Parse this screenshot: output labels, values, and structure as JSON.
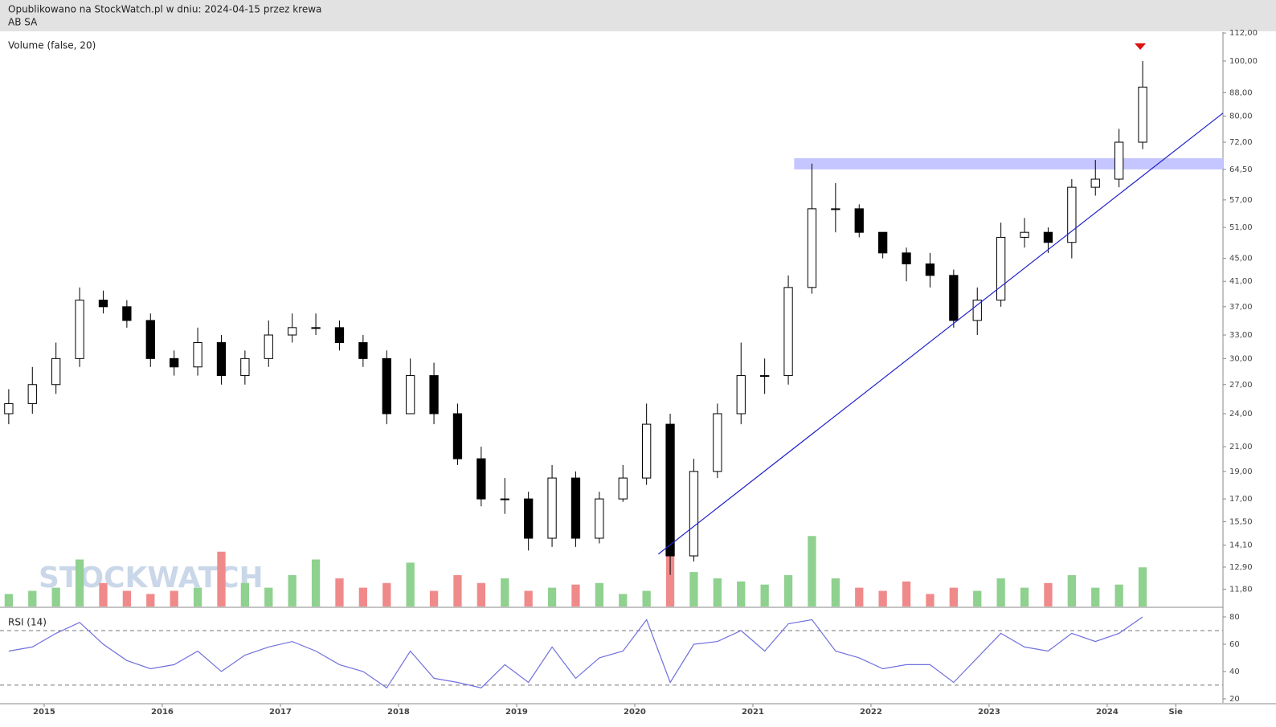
{
  "header": {
    "published": "Opublikowano na StockWatch.pl w dniu: 2024-04-15 przez krewa",
    "watermark": "STOCKWATCH"
  },
  "chart_data": [
    {
      "type": "candlestick",
      "title": "AB SA",
      "volume_label": "Volume (false, 20)",
      "log_scale": true,
      "x": [
        2014.7,
        2014.9,
        2015.1,
        2015.3,
        2015.5,
        2015.7,
        2015.9,
        2016.1,
        2016.3,
        2016.5,
        2016.7,
        2016.9,
        2017.1,
        2017.3,
        2017.5,
        2017.7,
        2017.9,
        2018.1,
        2018.3,
        2018.5,
        2018.7,
        2018.9,
        2019.1,
        2019.3,
        2019.5,
        2019.7,
        2019.9,
        2020.1,
        2020.3,
        2020.5,
        2020.7,
        2020.9,
        2021.1,
        2021.3,
        2021.5,
        2021.7,
        2021.9,
        2022.1,
        2022.3,
        2022.5,
        2022.7,
        2022.9,
        2023.1,
        2023.3,
        2023.5,
        2023.7,
        2023.9,
        2024.1,
        2024.3
      ],
      "open": [
        24,
        25,
        27,
        30,
        38,
        37,
        35,
        30,
        29,
        32,
        28,
        30,
        33,
        34,
        34,
        32,
        30,
        24,
        28,
        24,
        20,
        17,
        17,
        14.5,
        18.5,
        14.5,
        17,
        18.5,
        23,
        13.5,
        19,
        24,
        28,
        28,
        40,
        55,
        55,
        50,
        46,
        44,
        42,
        35,
        38,
        49,
        50,
        48,
        60,
        62,
        72
      ],
      "high": [
        26.5,
        29,
        32,
        40,
        39.5,
        38,
        36,
        31,
        34,
        33,
        31,
        35,
        36,
        36,
        35,
        33,
        31,
        30,
        29.5,
        25,
        21,
        18.5,
        17.5,
        19.5,
        19,
        17.5,
        19.5,
        25,
        24,
        20,
        25,
        32,
        30,
        42,
        66,
        61,
        56,
        50,
        47,
        46,
        43,
        40,
        52,
        53,
        51,
        62,
        67,
        76,
        100
      ],
      "low": [
        23,
        24,
        26,
        29,
        36,
        34,
        29,
        28,
        28,
        27,
        27,
        29,
        32,
        33,
        31,
        29,
        23,
        24,
        23,
        19.5,
        16.5,
        16,
        13.8,
        14,
        14,
        14.2,
        16.8,
        18,
        12.5,
        13.2,
        18.5,
        23,
        26,
        27,
        39,
        50,
        49,
        45,
        41,
        40,
        34,
        33,
        37,
        47,
        46,
        45,
        58,
        60,
        70
      ],
      "close": [
        25,
        27,
        30,
        38,
        37,
        35,
        30,
        29,
        32,
        28,
        30,
        33,
        34,
        34,
        32,
        30,
        24,
        28,
        24,
        20,
        17,
        17,
        14.5,
        18.5,
        14.5,
        17,
        18.5,
        23,
        13.5,
        19,
        24,
        28,
        28,
        40,
        55,
        55,
        50,
        46,
        44,
        42,
        35,
        38,
        49,
        50,
        48,
        60,
        62,
        72,
        90
      ],
      "volume": [
        8,
        10,
        12,
        30,
        15,
        10,
        8,
        10,
        12,
        35,
        15,
        12,
        20,
        30,
        18,
        12,
        15,
        28,
        10,
        20,
        15,
        18,
        10,
        12,
        14,
        15,
        8,
        10,
        40,
        22,
        18,
        16,
        14,
        20,
        45,
        18,
        12,
        10,
        16,
        8,
        12,
        10,
        18,
        12,
        15,
        20,
        12,
        14,
        25
      ],
      "vlim": [
        0,
        100
      ],
      "up_color": "#8fd18f",
      "down_color": "#f08a8a",
      "xlim": [
        2014.626,
        2024.98
      ],
      "xticks": [
        2015,
        2016,
        2017,
        2018,
        2019,
        2020,
        2021,
        2022,
        2023,
        2024,
        {
          "value": 2024.58,
          "label": "Sie"
        }
      ],
      "ylim": [
        11,
        112.4
      ],
      "yticks": [
        {
          "value": 112,
          "label": "112,00"
        },
        {
          "value": 100,
          "label": "100,00"
        },
        {
          "value": 88,
          "label": "88,00"
        },
        {
          "value": 80,
          "label": "80,00"
        },
        {
          "value": 72,
          "label": "72,00"
        },
        {
          "value": 64.5,
          "label": "64,50"
        },
        {
          "value": 57,
          "label": "57,00"
        },
        {
          "value": 51,
          "label": "51,00"
        },
        {
          "value": 45,
          "label": "45,00"
        },
        {
          "value": 41,
          "label": "41,00"
        },
        {
          "value": 37,
          "label": "37,00"
        },
        {
          "value": 33,
          "label": "33,00"
        },
        {
          "value": 30,
          "label": "30,00"
        },
        {
          "value": 27,
          "label": "27,00"
        },
        {
          "value": 24,
          "label": "24,00"
        },
        {
          "value": 21,
          "label": "21,00"
        },
        {
          "value": 19,
          "label": "19,00"
        },
        {
          "value": 17,
          "label": "17,00"
        },
        {
          "value": 15.5,
          "label": "15,50"
        },
        {
          "value": 14.1,
          "label": "14,10"
        },
        {
          "value": 12.9,
          "label": "12,90"
        },
        {
          "value": 11.8,
          "label": "11,80"
        }
      ],
      "band": {
        "x": [
          2021.35,
          2024.98
        ],
        "y": [
          64.5,
          67.5
        ],
        "color": "#c5c5ff"
      },
      "trend_line": {
        "x": [
          2020.2,
          2024.98
        ],
        "y": [
          13.6,
          81
        ],
        "color": "#2222cc"
      },
      "marker": {
        "x": 2024.28,
        "y": 106,
        "color": "#e01010"
      }
    },
    {
      "type": "line",
      "title": "RSI (14)",
      "color": "#7070dd",
      "values": [
        55,
        58,
        68,
        76,
        60,
        48,
        42,
        45,
        55,
        40,
        52,
        58,
        62,
        55,
        45,
        40,
        28,
        55,
        35,
        32,
        28,
        45,
        32,
        58,
        35,
        50,
        55,
        78,
        32,
        60,
        62,
        70,
        55,
        75,
        78,
        55,
        50,
        42,
        45,
        45,
        32,
        50,
        68,
        58,
        55,
        68,
        62,
        68,
        80
      ],
      "ylim": [
        17,
        84.7
      ],
      "yticks": [
        20,
        40,
        60,
        80
      ],
      "hlines": [
        70,
        30
      ]
    }
  ]
}
